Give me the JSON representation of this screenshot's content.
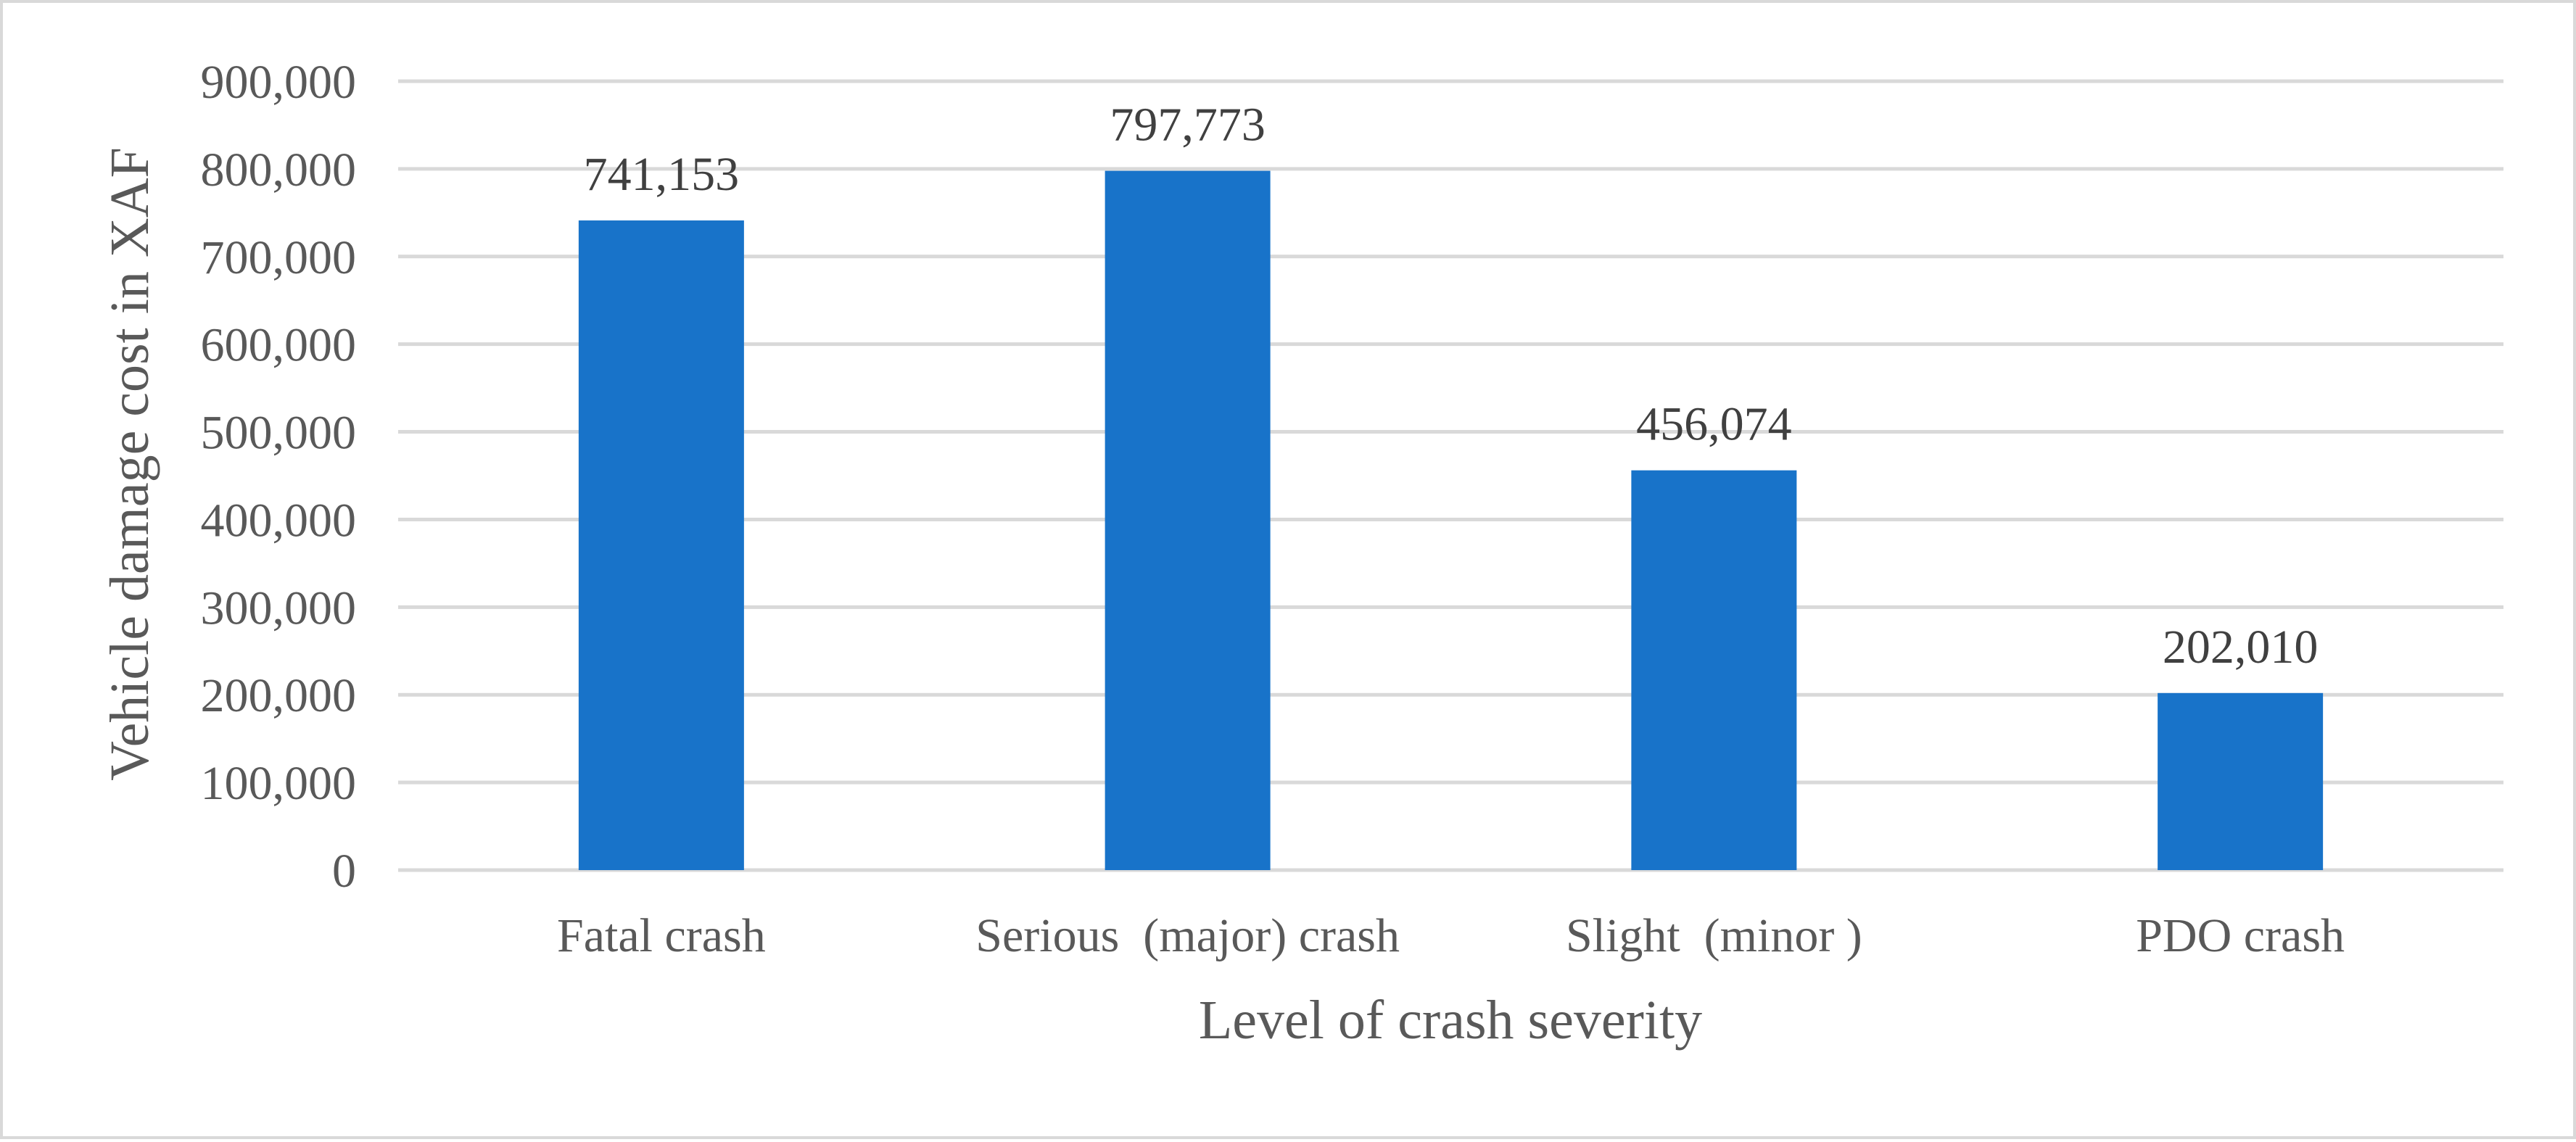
{
  "chart_data": {
    "type": "bar",
    "title": "",
    "categories": [
      "Fatal crash",
      "Serious  (major) crash",
      "Slight  (minor )",
      "PDO crash"
    ],
    "values": [
      741153,
      797773,
      456074,
      202010
    ],
    "data_labels": [
      "741,153",
      "797,773",
      "456,074",
      "202,010"
    ],
    "xlabel": "Level of crash severity",
    "ylabel": "Vehicle damage cost in XAF",
    "ylim": [
      0,
      900000
    ],
    "yticks": [
      0,
      100000,
      200000,
      300000,
      400000,
      500000,
      600000,
      700000,
      800000,
      900000
    ],
    "ytick_labels": [
      "0",
      "100,000",
      "200,000",
      "300,000",
      "400,000",
      "500,000",
      "600,000",
      "700,000",
      "800,000",
      "900,000"
    ],
    "grid": true,
    "legend": "none",
    "bar_color": "#1873C9"
  }
}
